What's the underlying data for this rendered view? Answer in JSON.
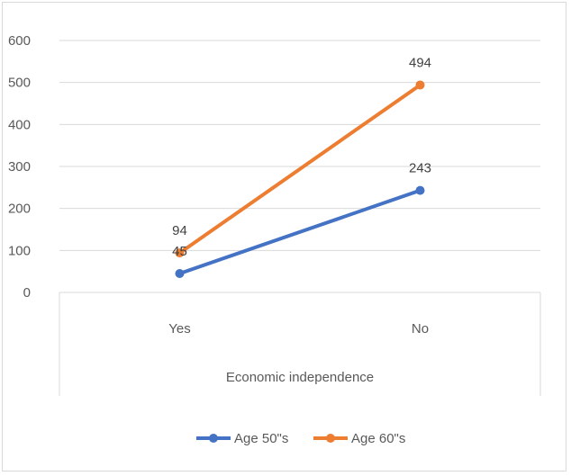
{
  "chart_data": {
    "type": "line",
    "categories": [
      "Yes",
      "No"
    ],
    "xlabel": "Economic independence",
    "ylabel": "",
    "ylim": [
      0,
      600
    ],
    "yticks": [
      0,
      100,
      200,
      300,
      400,
      500,
      600
    ],
    "grid": true,
    "legend_position": "bottom",
    "series": [
      {
        "name": "Age 50\"s",
        "values": [
          45,
          243
        ],
        "color": "#4472c4"
      },
      {
        "name": "Age 60\"s",
        "values": [
          94,
          494
        ],
        "color": "#ed7d31"
      }
    ]
  },
  "colors": {
    "gridline": "#d9d9d9",
    "axis_text": "#595959"
  }
}
